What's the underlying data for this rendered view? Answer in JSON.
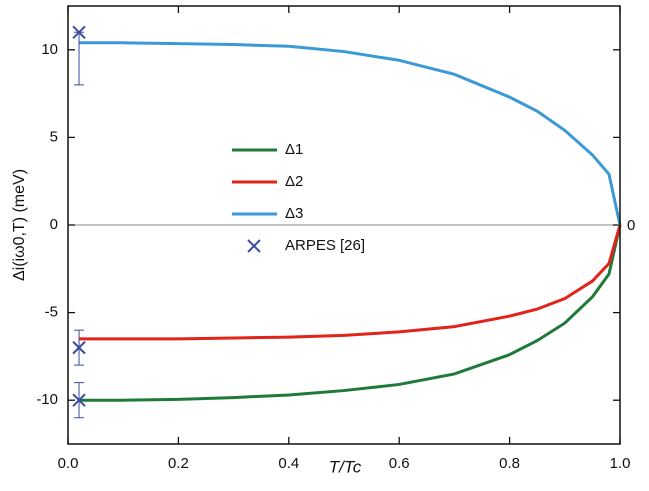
{
  "chart_data": {
    "type": "line",
    "xlabel": "T/Tc",
    "ylabel": "Δi(iω0,T) (meV)",
    "annotation": "0",
    "xlim": [
      0,
      1.0
    ],
    "ylim": [
      -12.5,
      12.5
    ],
    "xticks": [
      {
        "value": 0,
        "label": "0.0"
      },
      0.2,
      0.4,
      0.6,
      0.8,
      {
        "value": 1,
        "label": "1.0"
      }
    ],
    "yticks": [
      -10,
      -5,
      0,
      5,
      10
    ],
    "zero_line": true,
    "legend_position": "center-left",
    "x": [
      0.02,
      0.1,
      0.2,
      0.3,
      0.4,
      0.5,
      0.6,
      0.7,
      0.8,
      0.85,
      0.9,
      0.95,
      0.98,
      1.0
    ],
    "series": [
      {
        "name": "Δ1",
        "color": "#1f7a3a",
        "values": [
          -10,
          -10,
          -9.95,
          -9.85,
          -9.7,
          -9.45,
          -9.1,
          -8.5,
          -7.4,
          -6.6,
          -5.6,
          -4.1,
          -2.8,
          0
        ]
      },
      {
        "name": "Δ2",
        "color": "#e2231a",
        "values": [
          -6.5,
          -6.5,
          -6.5,
          -6.45,
          -6.4,
          -6.3,
          -6.1,
          -5.8,
          -5.2,
          -4.8,
          -4.2,
          -3.2,
          -2.2,
          0
        ]
      },
      {
        "name": "Δ3",
        "color": "#3b9ad6",
        "values": [
          10.4,
          10.4,
          10.35,
          10.3,
          10.2,
          9.9,
          9.4,
          8.6,
          7.3,
          6.5,
          5.4,
          4.0,
          2.9,
          0
        ]
      }
    ],
    "points": {
      "name": "ARPES [26]",
      "color": "#3b4ba0",
      "x": [
        0.02,
        0.02,
        0.02
      ],
      "values": [
        11,
        -7,
        -10
      ],
      "err_minus": [
        3,
        1,
        1
      ],
      "err_plus": [
        0,
        1,
        1
      ]
    }
  }
}
